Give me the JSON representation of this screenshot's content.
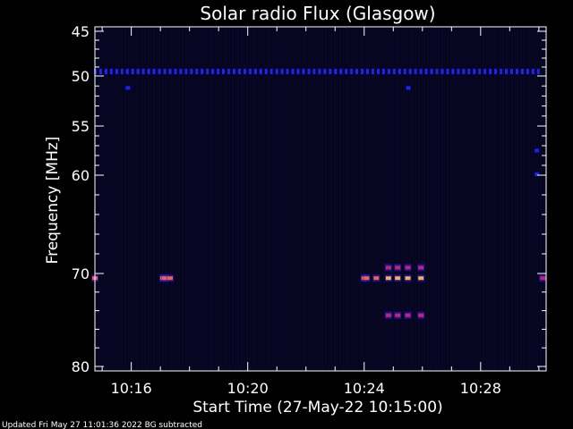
{
  "chart_data": {
    "type": "heatmap",
    "title": "Solar radio Flux (Glasgow)",
    "xlabel": "Start Time (27-May-22 10:15:00)",
    "ylabel": "Frequency [MHz]",
    "xlim": [
      "10:14:45",
      "10:30:15"
    ],
    "ylim": [
      45,
      80
    ],
    "x_ticks": [
      "10:16",
      "10:20",
      "10:24",
      "10:28"
    ],
    "x_tick_values": [
      960,
      1200,
      1440,
      1680
    ],
    "y_ticks": [
      45,
      50,
      55,
      60,
      70,
      80
    ],
    "x_units": "seconds after 10:00:00",
    "background_color": "#04041a",
    "colormap": [
      "#0a0a5a",
      "#2020ff",
      "#d02060",
      "#ff6030",
      "#ffb030"
    ],
    "features": [
      {
        "label": "persistent 50 MHz band",
        "freq": 49.5,
        "t_start": 885,
        "t_end": 1800,
        "intensity": 0.35,
        "dashed": true
      },
      {
        "label": "isolated blob",
        "freq": 51.2,
        "t": 952,
        "intensity": 0.3
      },
      {
        "label": "isolated blob",
        "freq": 51.2,
        "t": 1530,
        "intensity": 0.3
      },
      {
        "label": "isolated blob",
        "freq": 57.5,
        "t": 1795,
        "intensity": 0.35
      },
      {
        "label": "isolated blob",
        "freq": 59.9,
        "t": 1795,
        "intensity": 0.3
      },
      {
        "label": "70.5 MHz bursts",
        "freq": 70.5,
        "points": [
          {
            "t": 885,
            "intensity": 0.7
          },
          {
            "t": 1025,
            "intensity": 0.7
          },
          {
            "t": 1029,
            "intensity": 0.7
          },
          {
            "t": 1040,
            "intensity": 0.65
          },
          {
            "t": 1440,
            "intensity": 0.75
          },
          {
            "t": 1445,
            "intensity": 0.7
          },
          {
            "t": 1465,
            "intensity": 0.7
          },
          {
            "t": 1490,
            "intensity": 0.95
          },
          {
            "t": 1509,
            "intensity": 0.95
          },
          {
            "t": 1530,
            "intensity": 0.95
          },
          {
            "t": 1557,
            "intensity": 0.95
          },
          {
            "t": 1808,
            "intensity": 0.6
          }
        ]
      },
      {
        "label": "upper sideband",
        "freq": 69.4,
        "points": [
          {
            "t": 1490,
            "intensity": 0.4
          },
          {
            "t": 1509,
            "intensity": 0.4
          },
          {
            "t": 1530,
            "intensity": 0.4
          },
          {
            "t": 1557,
            "intensity": 0.4
          }
        ]
      },
      {
        "label": "lower sideband",
        "freq": 74.5,
        "points": [
          {
            "t": 1490,
            "intensity": 0.4
          },
          {
            "t": 1509,
            "intensity": 0.4
          },
          {
            "t": 1530,
            "intensity": 0.4
          },
          {
            "t": 1557,
            "intensity": 0.4
          }
        ]
      }
    ]
  },
  "footer": {
    "text": "Updated Fri May 27 11:01:36 2022   BG subtracted"
  }
}
